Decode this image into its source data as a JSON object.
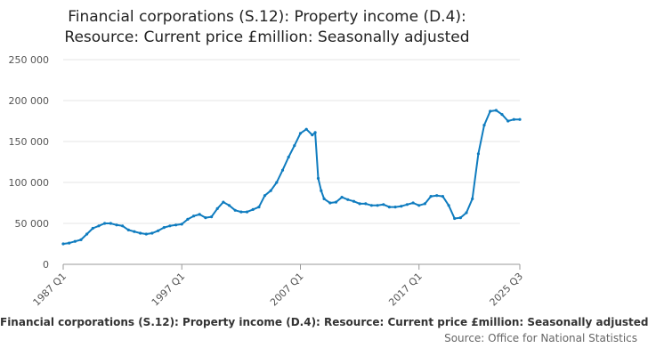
{
  "chart_data": {
    "type": "line",
    "title_line1": "Financial corporations (S.12): Property income (D.4):",
    "title_line2": "Resource: Current price £million: Seasonally adjusted",
    "xlabel": "",
    "ylabel": "",
    "ylim": [
      0,
      250000
    ],
    "yticks": [
      0,
      50000,
      100000,
      150000,
      200000,
      250000
    ],
    "ytick_labels": [
      "0",
      "50 000",
      "100 000",
      "150 000",
      "200 000",
      "250 000"
    ],
    "xlim": [
      1987.0,
      2025.5
    ],
    "xticks": [
      1987.0,
      1997.0,
      2007.0,
      2017.0,
      2025.5
    ],
    "xtick_labels": [
      "1987 Q1",
      "1997 Q1",
      "2007 Q1",
      "2017 Q1",
      "2025 Q3"
    ],
    "grid": true,
    "legend": "none",
    "series": [
      {
        "name": "Financial corporations (S.12): Property income (D.4): Resource: Current price £million: Seasonally adjusted",
        "color": "#0f7cbf",
        "x": [
          1987.0,
          1987.5,
          1988.0,
          1988.5,
          1989.0,
          1989.5,
          1990.0,
          1990.5,
          1991.0,
          1991.5,
          1992.0,
          1992.5,
          1993.0,
          1993.5,
          1994.0,
          1994.5,
          1995.0,
          1995.5,
          1996.0,
          1996.5,
          1997.0,
          1997.5,
          1998.0,
          1998.5,
          1999.0,
          1999.5,
          2000.0,
          2000.5,
          2001.0,
          2001.5,
          2002.0,
          2002.5,
          2003.0,
          2003.5,
          2004.0,
          2004.5,
          2005.0,
          2005.5,
          2006.0,
          2006.5,
          2007.0,
          2007.5,
          2008.0,
          2008.25,
          2008.5,
          2008.75,
          2009.0,
          2009.5,
          2010.0,
          2010.5,
          2011.0,
          2011.5,
          2012.0,
          2012.5,
          2013.0,
          2013.5,
          2014.0,
          2014.5,
          2015.0,
          2015.5,
          2016.0,
          2016.5,
          2017.0,
          2017.5,
          2018.0,
          2018.5,
          2019.0,
          2019.5,
          2020.0,
          2020.5,
          2021.0,
          2021.5,
          2022.0,
          2022.5,
          2023.0,
          2023.5,
          2024.0,
          2024.5,
          2025.0,
          2025.5
        ],
        "values": [
          25000,
          26000,
          28000,
          30000,
          37000,
          44000,
          47000,
          50000,
          50000,
          48000,
          47000,
          42000,
          40000,
          38000,
          37000,
          38000,
          41000,
          45000,
          47000,
          48000,
          49000,
          55000,
          59000,
          61000,
          57000,
          58000,
          68000,
          76000,
          72000,
          66000,
          64000,
          64000,
          67000,
          70000,
          84000,
          90000,
          100000,
          115000,
          131000,
          145000,
          160000,
          165000,
          158000,
          161000,
          105000,
          90000,
          80000,
          75000,
          76000,
          82000,
          79000,
          77000,
          74000,
          74000,
          72000,
          72000,
          73000,
          70000,
          70000,
          71000,
          73000,
          75000,
          72000,
          74000,
          83000,
          84000,
          83000,
          72000,
          56000,
          57000,
          63000,
          80000,
          135000,
          170000,
          187000,
          188000,
          183000,
          175000,
          177000,
          177000
        ]
      }
    ]
  },
  "footer": {
    "caption": "Financial corporations (S.12): Property income (D.4): Resource: Current price £million: Seasonally adjusted",
    "source": "Source: Office for National Statistics"
  }
}
